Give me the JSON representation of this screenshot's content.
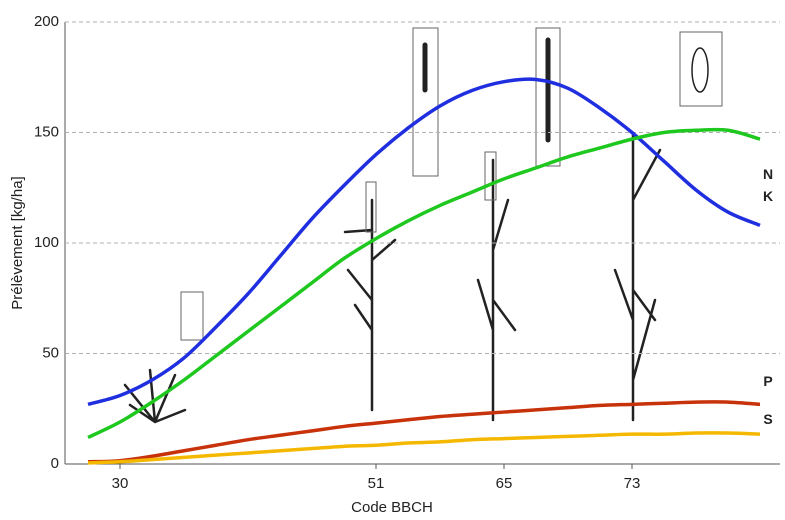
{
  "chart_data": {
    "type": "line",
    "x_label": "Code BBCH",
    "y_label": "Prélèvement [kg/ha]",
    "categories": [
      null,
      "30",
      null,
      null,
      null,
      null,
      null,
      null,
      null,
      "51",
      null,
      null,
      null,
      "65",
      null,
      null,
      null,
      "73",
      null,
      null,
      null,
      null
    ],
    "ylim": [
      0,
      200
    ],
    "yticks": [
      0,
      50,
      100,
      150,
      200
    ],
    "grid": true,
    "series": [
      {
        "name": "N",
        "color": "#1f2fe0",
        "values": [
          27,
          31,
          38,
          48,
          62,
          77,
          94,
          111,
          126,
          140,
          152,
          162,
          169,
          173,
          174,
          170,
          161,
          150,
          137,
          124,
          114,
          108
        ]
      },
      {
        "name": "K",
        "color": "#1ec81e",
        "values": [
          12,
          19,
          28,
          38,
          49,
          60,
          71,
          82,
          93,
          102,
          110,
          117,
          123,
          129,
          134,
          139,
          143,
          147,
          150,
          151,
          151,
          147
        ]
      },
      {
        "name": "P",
        "color": "#c8320a",
        "values": [
          1,
          1.5,
          3.5,
          6,
          8.5,
          11,
          13,
          15,
          17,
          18.5,
          20,
          21.5,
          22.5,
          23.5,
          24.5,
          25.5,
          26.5,
          27,
          27.5,
          28,
          28,
          27
        ]
      },
      {
        "name": "S",
        "color": "#f5b800",
        "values": [
          0.5,
          1,
          2,
          3,
          4,
          5,
          6,
          7,
          8,
          8.5,
          9.5,
          10,
          11,
          11.5,
          12,
          12.5,
          13,
          13.5,
          13.5,
          14,
          14,
          13.5
        ]
      }
    ]
  }
}
